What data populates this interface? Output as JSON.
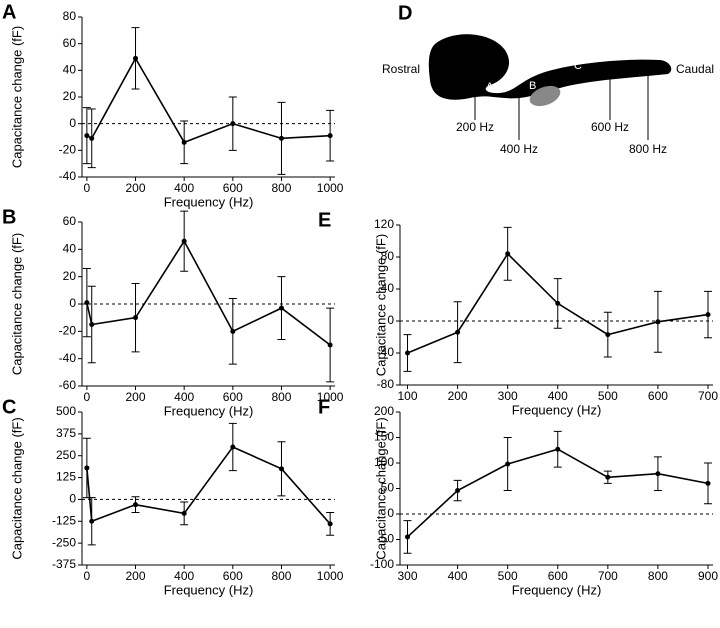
{
  "chart_data": [
    {
      "type": "line",
      "label": "A",
      "xlabel": "Frequency (Hz)",
      "ylabel": "Capacitance change (fF)",
      "x": [
        0,
        20,
        200,
        400,
        600,
        800,
        1000
      ],
      "values": [
        -9,
        -11,
        49,
        -14,
        0,
        -11,
        -9
      ],
      "errors": [
        21,
        22,
        23,
        16,
        20,
        27,
        19
      ],
      "xlim": [
        -20,
        1020
      ],
      "ylim": [
        -40,
        80
      ],
      "xticks": [
        0,
        200,
        400,
        600,
        800,
        1000
      ],
      "yticks": [
        -40,
        -20,
        0,
        20,
        40,
        60,
        80
      ],
      "reference_line": 0,
      "color": "#000000"
    },
    {
      "type": "line",
      "label": "B",
      "xlabel": "Frequency (Hz)",
      "ylabel": "Capacitance change (fF)",
      "x": [
        0,
        20,
        200,
        400,
        600,
        800,
        1000
      ],
      "values": [
        1,
        -15,
        -10,
        46,
        -20,
        -3,
        -30
      ],
      "errors": [
        25,
        28,
        25,
        22,
        24,
        23,
        27
      ],
      "xlim": [
        -20,
        1020
      ],
      "ylim": [
        -60,
        60
      ],
      "xticks": [
        0,
        200,
        400,
        600,
        800,
        1000
      ],
      "yticks": [
        -60,
        -40,
        -20,
        0,
        20,
        40,
        60
      ],
      "reference_line": 0,
      "color": "#000000"
    },
    {
      "type": "line",
      "label": "C",
      "xlabel": "Frequency (Hz)",
      "ylabel": "Capacitance change (fF)",
      "x": [
        0,
        20,
        200,
        400,
        600,
        800,
        1000
      ],
      "values": [
        180,
        -125,
        -30,
        -80,
        300,
        175,
        -140
      ],
      "errors": [
        170,
        135,
        45,
        65,
        135,
        155,
        65
      ],
      "xlim": [
        -20,
        1020
      ],
      "ylim": [
        -375,
        500
      ],
      "xticks": [
        0,
        200,
        400,
        600,
        800,
        1000
      ],
      "yticks": [
        -375,
        -250,
        -125,
        0,
        125,
        250,
        375,
        500
      ],
      "reference_line": 0,
      "color": "#000000"
    },
    {
      "type": "line",
      "label": "E",
      "xlabel": "Frequency (Hz)",
      "ylabel": "Capacitance change (fF)",
      "x": [
        100,
        200,
        300,
        400,
        500,
        600,
        700
      ],
      "values": [
        -40,
        -14,
        84,
        22,
        -17,
        -1,
        8
      ],
      "errors": [
        23,
        38,
        33,
        31,
        28,
        38,
        29
      ],
      "xlim": [
        85,
        710
      ],
      "ylim": [
        -80,
        120
      ],
      "xticks": [
        100,
        200,
        300,
        400,
        500,
        600,
        700
      ],
      "yticks": [
        -80,
        -40,
        0,
        40,
        80,
        120
      ],
      "reference_line": 0,
      "color": "#000000"
    },
    {
      "type": "line",
      "label": "F",
      "xlabel": "Frequency (Hz)",
      "ylabel": "Capacitance change (fF)",
      "x": [
        300,
        400,
        500,
        600,
        700,
        800,
        900
      ],
      "values": [
        -45,
        46,
        98,
        127,
        72,
        79,
        60
      ],
      "errors": [
        32,
        20,
        52,
        35,
        12,
        33,
        40
      ],
      "xlim": [
        285,
        910
      ],
      "ylim": [
        -100,
        200
      ],
      "xticks": [
        300,
        400,
        500,
        600,
        700,
        800,
        900
      ],
      "yticks": [
        -100,
        -50,
        0,
        50,
        100,
        150,
        200
      ],
      "reference_line": 0,
      "color": "#000000"
    }
  ],
  "diagram": {
    "label": "D",
    "rostral": "Rostral",
    "caudal": "Caudal",
    "region_a": "A",
    "region_b": "B",
    "region_c": "C",
    "markers": [
      "200 Hz",
      "400 Hz",
      "600 Hz",
      "800 Hz"
    ]
  }
}
